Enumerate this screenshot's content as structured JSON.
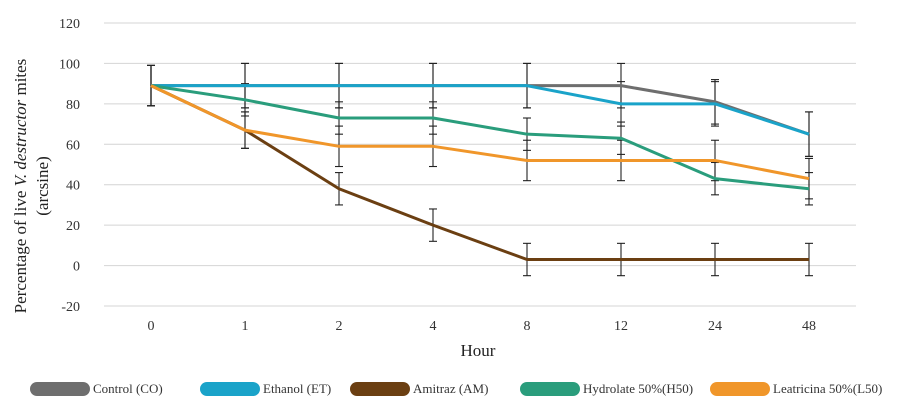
{
  "chart_data": {
    "type": "line",
    "categories": [
      "0",
      "1",
      "2",
      "4",
      "8",
      "12",
      "24",
      "48"
    ],
    "xlabel": "Hour",
    "ylabel_line1_pre": "Percentage of live ",
    "ylabel_line1_italic": "V. destructor",
    "ylabel_line1_post": " mites",
    "ylabel_line2": "(arcsine)",
    "ylim": [
      -20,
      120
    ],
    "yticks": [
      -20,
      0,
      20,
      40,
      60,
      80,
      100,
      120
    ],
    "grid": true,
    "legend_position": "bottom",
    "series": [
      {
        "name": "Control (CO)",
        "color": "#6e6e6e",
        "values": [
          89,
          89,
          89,
          89,
          89,
          89,
          81,
          65
        ],
        "errors": [
          10,
          11,
          11,
          11,
          11,
          11,
          11,
          11
        ]
      },
      {
        "name": "Ethanol (ET)",
        "color": "#1aa3c9",
        "values": [
          89,
          89,
          89,
          89,
          89,
          80,
          80,
          65
        ],
        "errors": [
          10,
          11,
          11,
          11,
          11,
          11,
          11,
          11
        ]
      },
      {
        "name": "Amitraz (AM)",
        "color": "#6b3f12",
        "values": [
          89,
          67,
          38,
          20,
          3,
          3,
          3,
          3
        ],
        "errors": [
          10,
          9,
          8,
          8,
          8,
          8,
          8,
          8
        ]
      },
      {
        "name": "Hydrolate 50%(H50)",
        "color": "#2a9d7c",
        "values": [
          89,
          82,
          73,
          73,
          65,
          63,
          43,
          38
        ],
        "errors": [
          10,
          8,
          8,
          8,
          8,
          8,
          8,
          8
        ]
      },
      {
        "name": "Leatricina 50%(L50)",
        "color": "#f0962a",
        "values": [
          89,
          67,
          59,
          59,
          52,
          52,
          52,
          43
        ],
        "errors": [
          10,
          9,
          10,
          10,
          10,
          10,
          10,
          10
        ]
      }
    ]
  }
}
